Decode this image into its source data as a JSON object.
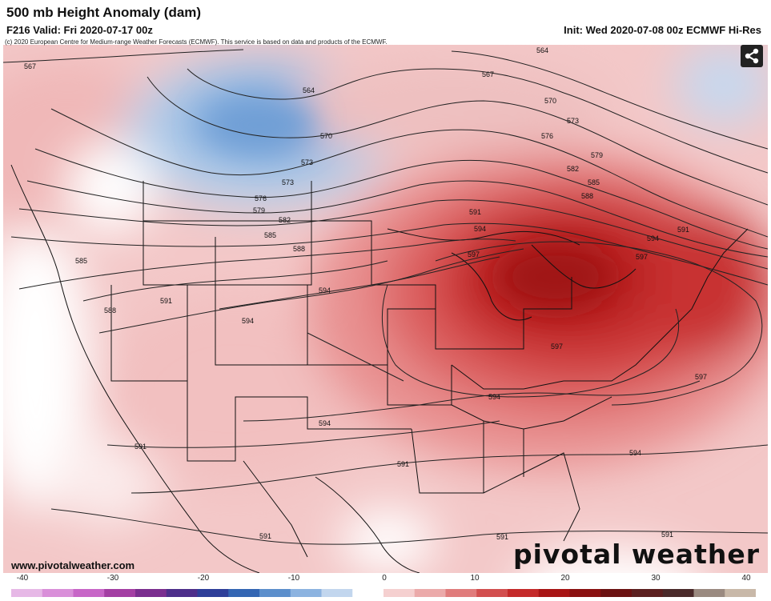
{
  "header": {
    "title": "500 mb Height Anomaly (dam)",
    "valid": "F216 Valid: Fri 2020-07-17 00z",
    "init": "Init: Wed 2020-07-08 00z ECMWF Hi-Res",
    "copyright": "(c) 2020 European Centre for Medium-range Weather Forecasts (ECMWF). This service is based on data and products of the ECMWF."
  },
  "footer": {
    "site": "www.pivotalweather.com",
    "logo": "pivotal weather"
  },
  "share": {
    "icon": "share-icon"
  },
  "colorbar": {
    "ticks": [
      "-40",
      "-30",
      "-20",
      "-10",
      "0",
      "10",
      "20",
      "30",
      "40"
    ],
    "colors": [
      "#e6b8e6",
      "#d98fd9",
      "#c766c7",
      "#a33fa3",
      "#7a2e8f",
      "#4d2e8a",
      "#2e3f99",
      "#3366b3",
      "#5c8fcc",
      "#8cb3e0",
      "#c2d6ee",
      "#ffffff",
      "#f5d0d0",
      "#ebaaaa",
      "#e07c7c",
      "#d24f4f",
      "#c42a2a",
      "#a81515",
      "#8a1010",
      "#6b1212",
      "#5c2020",
      "#4a2a2a",
      "#9a8a80",
      "#c8b8a8"
    ]
  },
  "contours": {
    "labels": [
      {
        "text": "564",
        "id": "c564a"
      },
      {
        "text": "564",
        "id": "c564b"
      },
      {
        "text": "567",
        "id": "c567a"
      },
      {
        "text": "567",
        "id": "c567b"
      },
      {
        "text": "570",
        "id": "c570a"
      },
      {
        "text": "570",
        "id": "c570b"
      },
      {
        "text": "573",
        "id": "c573a"
      },
      {
        "text": "573",
        "id": "c573b"
      },
      {
        "text": "573",
        "id": "c573c"
      },
      {
        "text": "576",
        "id": "c576a"
      },
      {
        "text": "576",
        "id": "c576b"
      },
      {
        "text": "579",
        "id": "c579a"
      },
      {
        "text": "579",
        "id": "c579b"
      },
      {
        "text": "582",
        "id": "c582a"
      },
      {
        "text": "582",
        "id": "c582b"
      },
      {
        "text": "585",
        "id": "c585a"
      },
      {
        "text": "585",
        "id": "c585b"
      },
      {
        "text": "585",
        "id": "c585c"
      },
      {
        "text": "588",
        "id": "c588a"
      },
      {
        "text": "588",
        "id": "c588b"
      },
      {
        "text": "588",
        "id": "c588c"
      },
      {
        "text": "591",
        "id": "c591a"
      },
      {
        "text": "591",
        "id": "c591b"
      },
      {
        "text": "591",
        "id": "c591c"
      },
      {
        "text": "591",
        "id": "c591d"
      },
      {
        "text": "591",
        "id": "c591e"
      },
      {
        "text": "591",
        "id": "c591f"
      },
      {
        "text": "591",
        "id": "c591g"
      },
      {
        "text": "591",
        "id": "c591h"
      },
      {
        "text": "594",
        "id": "c594a"
      },
      {
        "text": "594",
        "id": "c594b"
      },
      {
        "text": "594",
        "id": "c594c"
      },
      {
        "text": "594",
        "id": "c594d"
      },
      {
        "text": "594",
        "id": "c594e"
      },
      {
        "text": "594",
        "id": "c594f"
      },
      {
        "text": "594",
        "id": "c594g"
      },
      {
        "text": "597",
        "id": "c597a"
      },
      {
        "text": "597",
        "id": "c597b"
      },
      {
        "text": "597",
        "id": "c597c"
      },
      {
        "text": "597",
        "id": "c597d"
      }
    ]
  }
}
